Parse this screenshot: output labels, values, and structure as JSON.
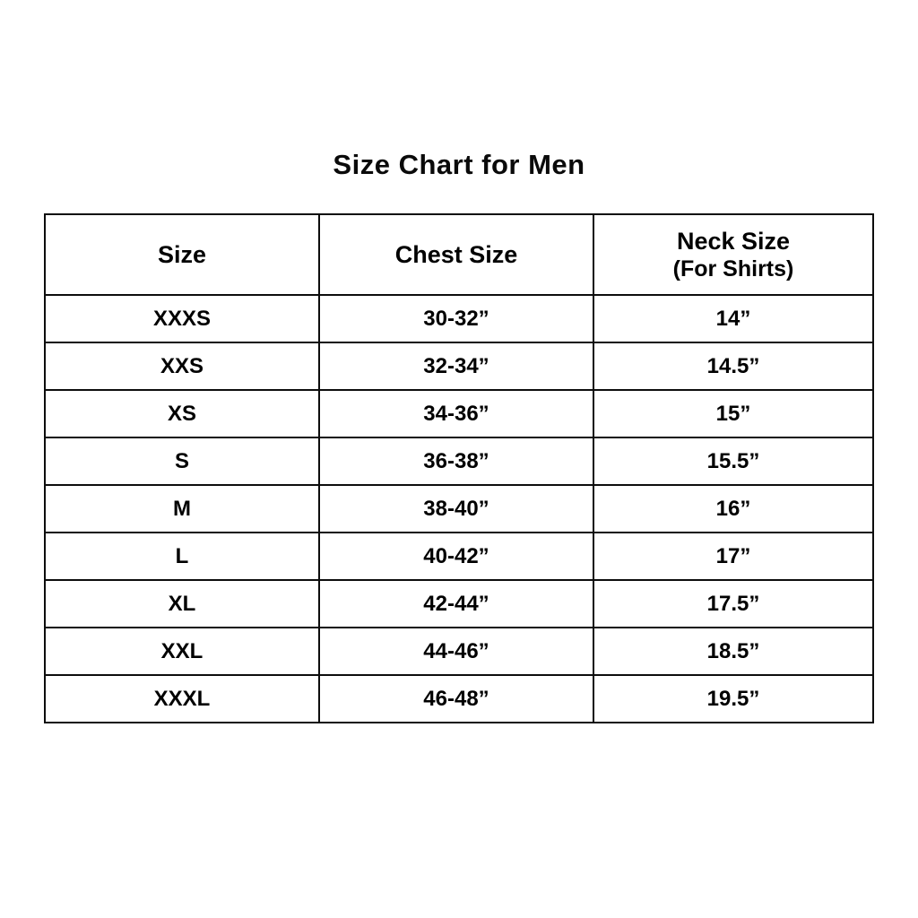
{
  "title": "Size Chart for Men",
  "table": {
    "headers": [
      {
        "label": "Size",
        "sublabel": ""
      },
      {
        "label": "Chest Size",
        "sublabel": ""
      },
      {
        "label": "Neck Size",
        "sublabel": "(For Shirts)"
      }
    ],
    "rows": [
      {
        "size": "XXXS",
        "chest": "30-32”",
        "neck": "14”"
      },
      {
        "size": "XXS",
        "chest": "32-34”",
        "neck": "14.5”"
      },
      {
        "size": "XS",
        "chest": "34-36”",
        "neck": "15”"
      },
      {
        "size": "S",
        "chest": "36-38”",
        "neck": "15.5”"
      },
      {
        "size": "M",
        "chest": "38-40”",
        "neck": "16”"
      },
      {
        "size": "L",
        "chest": "40-42”",
        "neck": "17”"
      },
      {
        "size": "XL",
        "chest": "42-44”",
        "neck": "17.5”"
      },
      {
        "size": "XXL",
        "chest": "44-46”",
        "neck": "18.5”"
      },
      {
        "size": "XXXL",
        "chest": "46-48”",
        "neck": "19.5”"
      }
    ]
  },
  "colors": {
    "background": "#ffffff",
    "text": "#000000",
    "border": "#0d0d0d"
  },
  "chart_data": {
    "type": "table",
    "title": "Size Chart for Men",
    "columns": [
      "Size",
      "Chest Size",
      "Neck Size (For Shirts)"
    ],
    "rows": [
      [
        "XXXS",
        "30-32”",
        "14”"
      ],
      [
        "XXS",
        "32-34”",
        "14.5”"
      ],
      [
        "XS",
        "34-36”",
        "15”"
      ],
      [
        "S",
        "36-38”",
        "15.5”"
      ],
      [
        "M",
        "38-40”",
        "16”"
      ],
      [
        "L",
        "40-42”",
        "17”"
      ],
      [
        "XL",
        "42-44”",
        "17.5”"
      ],
      [
        "XXL",
        "44-46”",
        "18.5”"
      ],
      [
        "XXXL",
        "46-48”",
        "19.5”"
      ]
    ],
    "chest_size_range_inches": [
      [
        30,
        32
      ],
      [
        32,
        34
      ],
      [
        34,
        36
      ],
      [
        36,
        38
      ],
      [
        38,
        40
      ],
      [
        40,
        42
      ],
      [
        42,
        44
      ],
      [
        44,
        46
      ],
      [
        46,
        48
      ]
    ],
    "neck_size_inches": [
      14,
      14.5,
      15,
      15.5,
      16,
      17,
      17.5,
      18.5,
      19.5
    ]
  }
}
